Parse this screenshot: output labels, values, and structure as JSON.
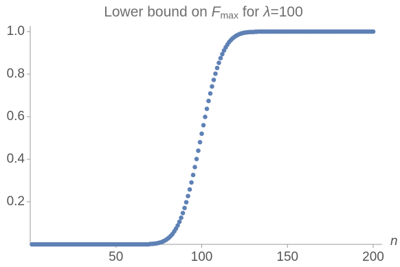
{
  "chart_data": {
    "type": "scatter",
    "title": [
      "Lower bound on ",
      "F",
      "max",
      " for ",
      "λ",
      "=100"
    ],
    "x_label": "n",
    "x": [
      1,
      2,
      3,
      4,
      5,
      6,
      7,
      8,
      9,
      10,
      11,
      12,
      13,
      14,
      15,
      16,
      17,
      18,
      19,
      20,
      21,
      22,
      23,
      24,
      25,
      26,
      27,
      28,
      29,
      30,
      31,
      32,
      33,
      34,
      35,
      36,
      37,
      38,
      39,
      40,
      41,
      42,
      43,
      44,
      45,
      46,
      47,
      48,
      49,
      50,
      51,
      52,
      53,
      54,
      55,
      56,
      57,
      58,
      59,
      60,
      61,
      62,
      63,
      64,
      65,
      66,
      67,
      68,
      69,
      70,
      71,
      72,
      73,
      74,
      75,
      76,
      77,
      78,
      79,
      80,
      81,
      82,
      83,
      84,
      85,
      86,
      87,
      88,
      89,
      90,
      91,
      92,
      93,
      94,
      95,
      96,
      97,
      98,
      99,
      100,
      101,
      102,
      103,
      104,
      105,
      106,
      107,
      108,
      109,
      110,
      111,
      112,
      113,
      114,
      115,
      116,
      117,
      118,
      119,
      120,
      121,
      122,
      123,
      124,
      125,
      126,
      127,
      128,
      129,
      130,
      131,
      132,
      133,
      134,
      135,
      136,
      137,
      138,
      139,
      140,
      141,
      142,
      143,
      144,
      145,
      146,
      147,
      148,
      149,
      150,
      151,
      152,
      153,
      154,
      155,
      156,
      157,
      158,
      159,
      160,
      161,
      162,
      163,
      164,
      165,
      166,
      167,
      168,
      169,
      170,
      171,
      172,
      173,
      174,
      175,
      176,
      177,
      178,
      179,
      180,
      181,
      182,
      183,
      184,
      185,
      186,
      187,
      188,
      189,
      190,
      191,
      192,
      193,
      194,
      195,
      196,
      197,
      198,
      199,
      200
    ],
    "values": [
      0,
      0,
      0,
      0,
      0,
      0,
      0,
      0,
      0,
      0,
      0,
      0,
      0,
      0,
      0,
      0,
      0,
      0,
      0,
      0,
      0,
      0,
      0,
      0,
      0,
      0,
      0,
      0,
      0,
      0,
      0,
      0,
      0,
      0,
      0,
      0,
      0,
      0,
      0,
      0,
      0,
      0,
      0,
      0,
      0,
      0,
      0,
      0,
      0,
      0,
      0,
      0,
      0,
      0,
      0,
      0,
      0,
      0,
      0,
      0,
      0,
      0,
      0,
      0,
      0,
      0,
      0,
      0,
      0,
      0.002,
      0.002,
      0.003,
      0.004,
      0.005,
      0.007,
      0.009,
      0.012,
      0.016,
      0.02,
      0.026,
      0.032,
      0.04,
      0.049,
      0.061,
      0.074,
      0.089,
      0.106,
      0.125,
      0.147,
      0.171,
      0.198,
      0.227,
      0.258,
      0.291,
      0.326,
      0.363,
      0.401,
      0.44,
      0.48,
      0.52,
      0.56,
      0.599,
      0.637,
      0.674,
      0.709,
      0.742,
      0.773,
      0.802,
      0.829,
      0.853,
      0.875,
      0.894,
      0.911,
      0.926,
      0.939,
      0.951,
      0.96,
      0.968,
      0.974,
      0.98,
      0.984,
      0.988,
      0.991,
      0.993,
      0.995,
      0.996,
      0.997,
      0.998,
      0.998,
      0.998,
      0.999,
      0.999,
      1,
      1,
      1,
      1,
      1,
      1,
      1,
      1,
      1,
      1,
      1,
      1,
      1,
      1,
      1,
      1,
      1,
      1,
      1,
      1,
      1,
      1,
      1,
      1,
      1,
      1,
      1,
      1,
      1,
      1,
      1,
      1,
      1,
      1,
      1,
      1,
      1,
      1,
      1,
      1,
      1,
      1,
      1,
      1,
      1,
      1,
      1,
      1,
      1,
      1,
      1,
      1,
      1,
      1,
      1,
      1,
      1,
      1,
      1,
      1,
      1,
      1,
      1,
      1,
      1,
      1,
      1,
      1
    ],
    "color": "#5e81b5",
    "xlim": [
      0,
      202
    ],
    "ylim": [
      0,
      1
    ],
    "xticks": [
      50,
      100,
      150,
      200
    ],
    "yticks": [
      0.2,
      0.4,
      0.6,
      0.8,
      {
        "value": 1,
        "label": "1.0"
      }
    ]
  }
}
